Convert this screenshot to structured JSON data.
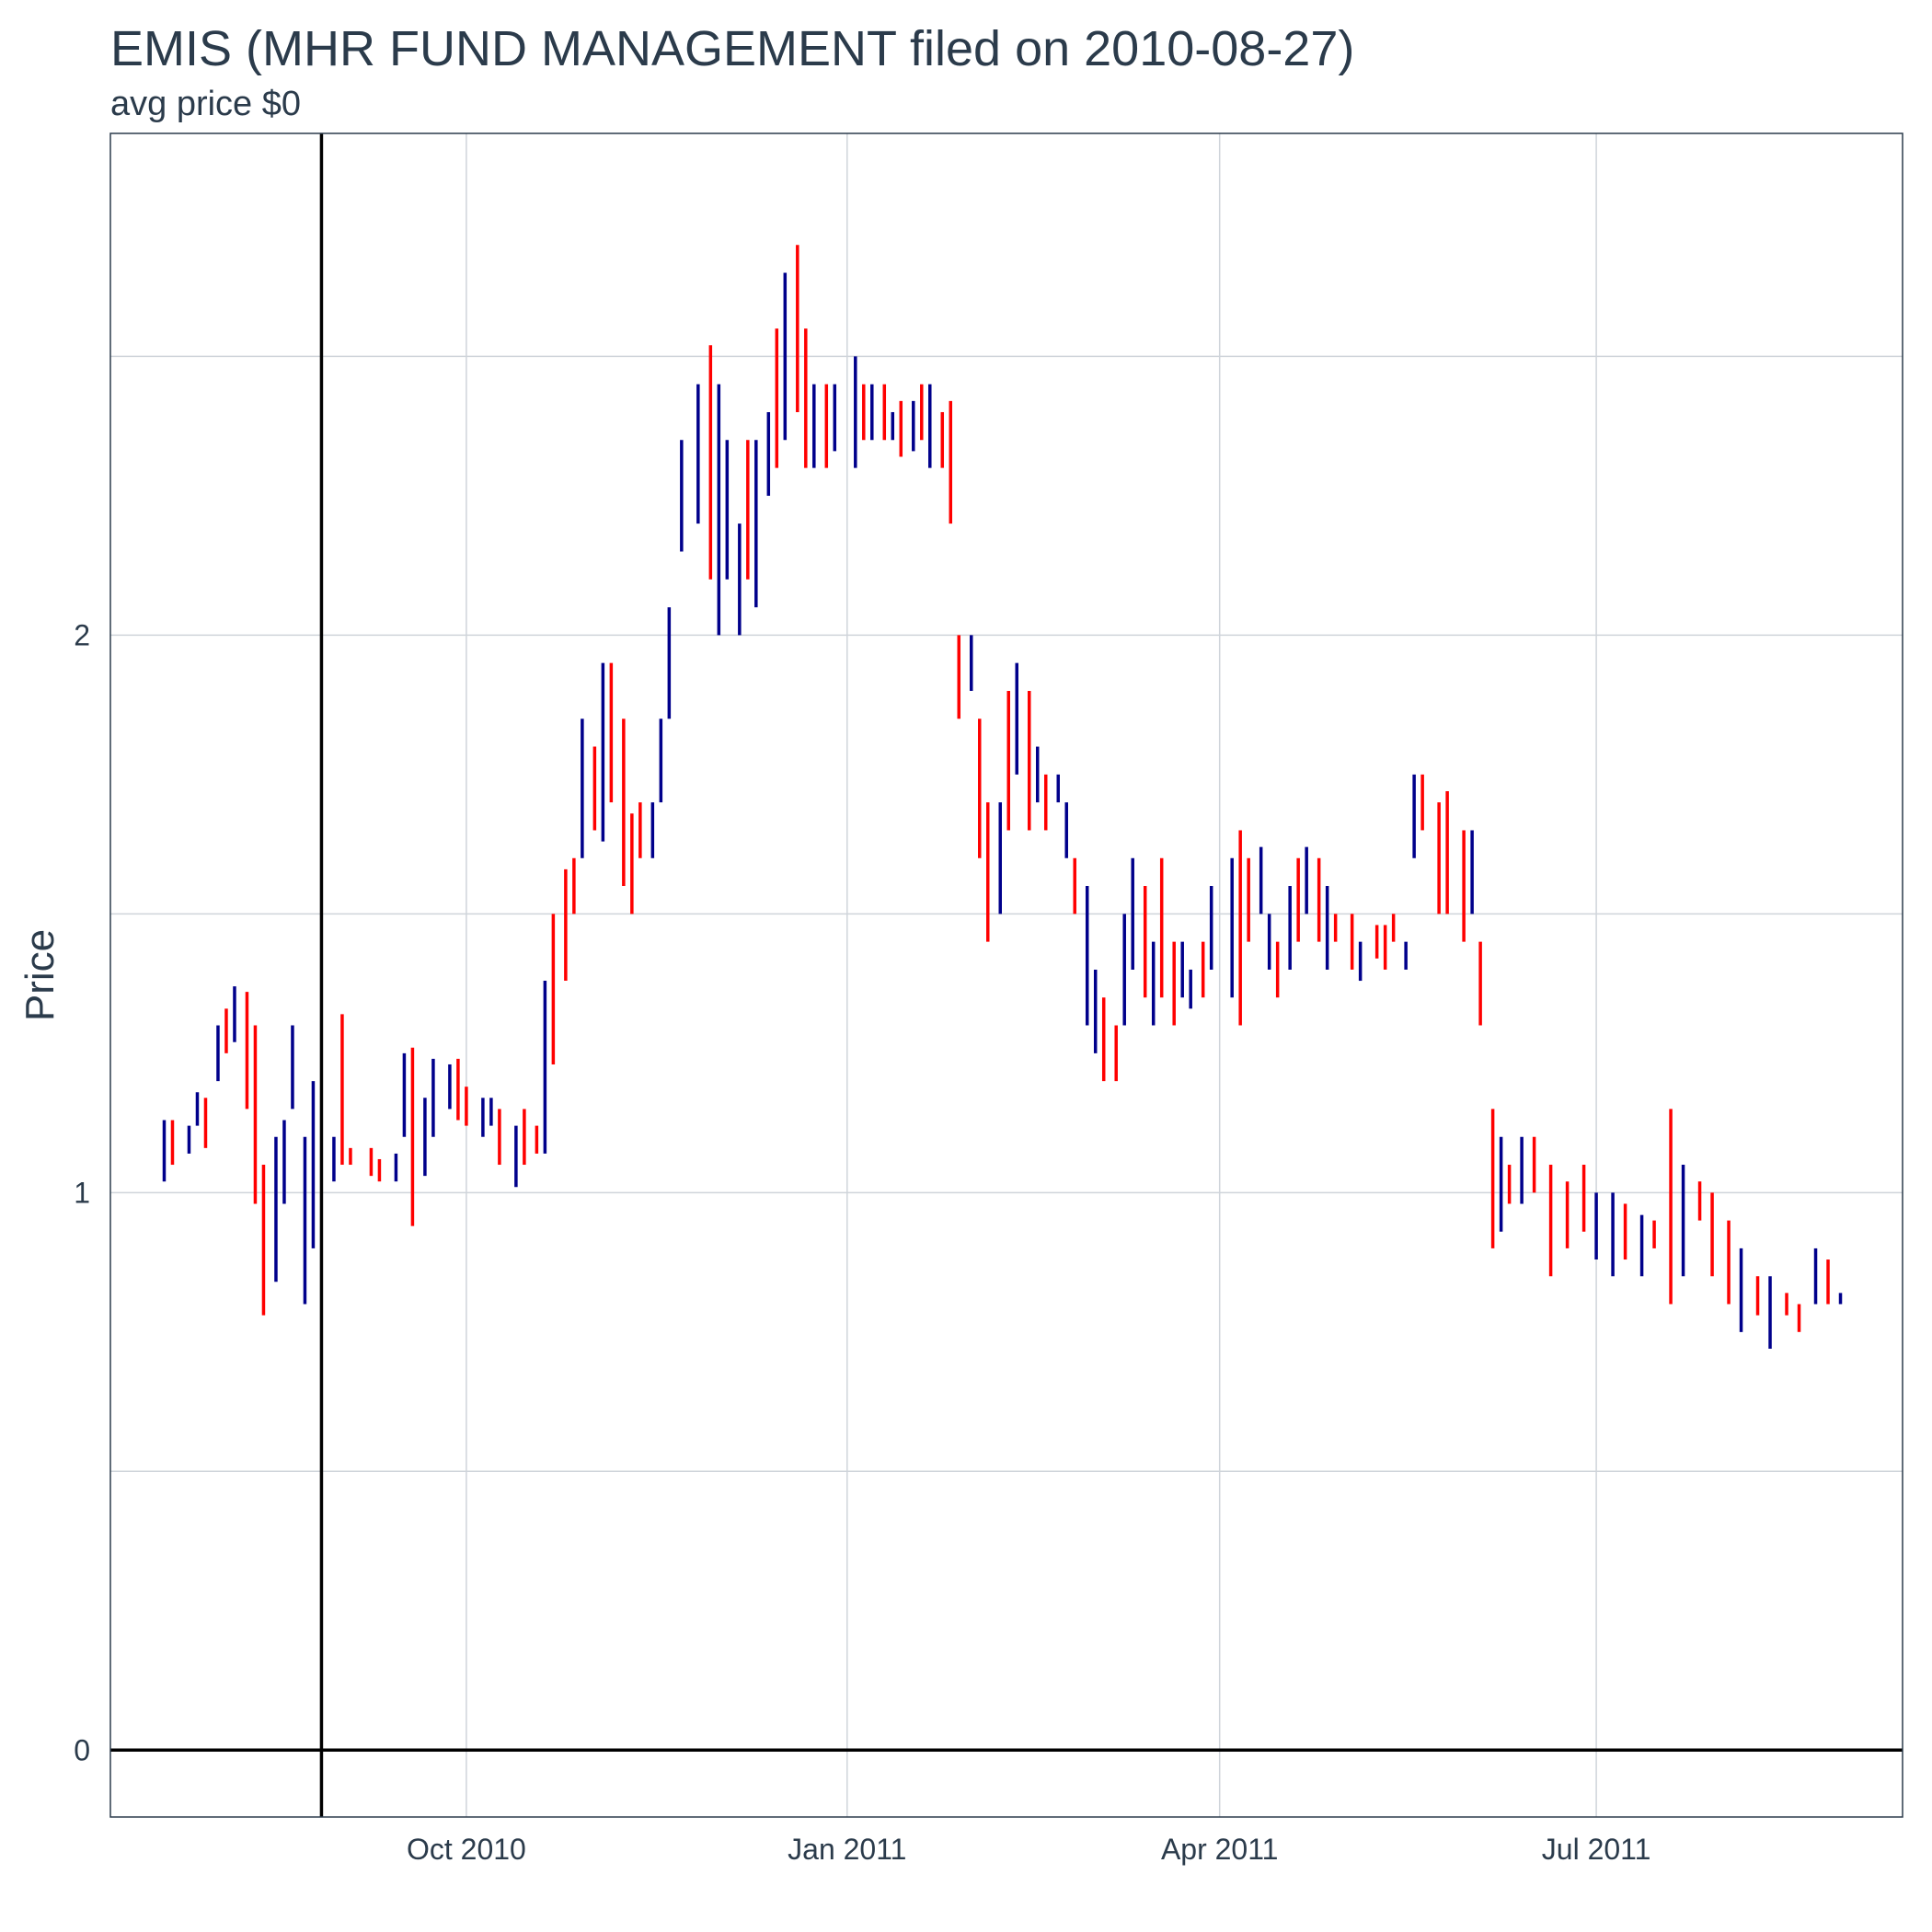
{
  "chart_data": {
    "type": "bar",
    "subtype": "ohlc",
    "title": "EMIS (MHR FUND MANAGEMENT filed on 2010-08-27)",
    "subtitle": "avg price $0",
    "xlabel": "",
    "ylabel": "Price",
    "xlim": [
      "2010-07-07",
      "2011-09-13"
    ],
    "ylim": [
      -0.12,
      2.9
    ],
    "x_ticks": [
      {
        "date": "2010-10-01",
        "label": "Oct 2010"
      },
      {
        "date": "2011-01-01",
        "label": "Jan 2011"
      },
      {
        "date": "2011-04-01",
        "label": "Apr 2011"
      },
      {
        "date": "2011-07-01",
        "label": "Jul 2011"
      }
    ],
    "y_ticks": [
      0,
      1,
      2
    ],
    "y_minor_gridlines": [
      0.5,
      1.5,
      2.5
    ],
    "reference_lines": {
      "vertical_date": "2010-08-27",
      "horizontal_value": 0
    },
    "colors": {
      "up": "#00008b",
      "down": "#ff0000",
      "reference": "#000000"
    },
    "grid": true,
    "legend": "none",
    "series": [
      {
        "date": "2010-07-20",
        "low": 1.02,
        "high": 1.13,
        "dir": "up"
      },
      {
        "date": "2010-07-22",
        "low": 1.05,
        "high": 1.13,
        "dir": "down"
      },
      {
        "date": "2010-07-26",
        "low": 1.07,
        "high": 1.12,
        "dir": "up"
      },
      {
        "date": "2010-07-28",
        "low": 1.12,
        "high": 1.18,
        "dir": "up"
      },
      {
        "date": "2010-07-30",
        "low": 1.08,
        "high": 1.17,
        "dir": "down"
      },
      {
        "date": "2010-08-02",
        "low": 1.2,
        "high": 1.3,
        "dir": "up"
      },
      {
        "date": "2010-08-04",
        "low": 1.25,
        "high": 1.33,
        "dir": "down"
      },
      {
        "date": "2010-08-06",
        "low": 1.27,
        "high": 1.37,
        "dir": "up"
      },
      {
        "date": "2010-08-09",
        "low": 1.15,
        "high": 1.36,
        "dir": "down"
      },
      {
        "date": "2010-08-11",
        "low": 0.98,
        "high": 1.3,
        "dir": "down"
      },
      {
        "date": "2010-08-13",
        "low": 0.78,
        "high": 1.05,
        "dir": "down"
      },
      {
        "date": "2010-08-16",
        "low": 0.84,
        "high": 1.1,
        "dir": "up"
      },
      {
        "date": "2010-08-18",
        "low": 0.98,
        "high": 1.13,
        "dir": "up"
      },
      {
        "date": "2010-08-20",
        "low": 1.15,
        "high": 1.3,
        "dir": "up"
      },
      {
        "date": "2010-08-23",
        "low": 0.8,
        "high": 1.1,
        "dir": "up"
      },
      {
        "date": "2010-08-25",
        "low": 0.9,
        "high": 1.2,
        "dir": "up"
      },
      {
        "date": "2010-08-30",
        "low": 1.02,
        "high": 1.1,
        "dir": "up"
      },
      {
        "date": "2010-09-01",
        "low": 1.05,
        "high": 1.32,
        "dir": "down"
      },
      {
        "date": "2010-09-03",
        "low": 1.05,
        "high": 1.08,
        "dir": "down"
      },
      {
        "date": "2010-09-08",
        "low": 1.03,
        "high": 1.08,
        "dir": "down"
      },
      {
        "date": "2010-09-10",
        "low": 1.02,
        "high": 1.06,
        "dir": "down"
      },
      {
        "date": "2010-09-14",
        "low": 1.02,
        "high": 1.07,
        "dir": "up"
      },
      {
        "date": "2010-09-16",
        "low": 1.1,
        "high": 1.25,
        "dir": "up"
      },
      {
        "date": "2010-09-18",
        "low": 0.94,
        "high": 1.26,
        "dir": "down"
      },
      {
        "date": "2010-09-21",
        "low": 1.03,
        "high": 1.17,
        "dir": "up"
      },
      {
        "date": "2010-09-23",
        "low": 1.1,
        "high": 1.24,
        "dir": "up"
      },
      {
        "date": "2010-09-27",
        "low": 1.15,
        "high": 1.23,
        "dir": "up"
      },
      {
        "date": "2010-09-29",
        "low": 1.13,
        "high": 1.24,
        "dir": "down"
      },
      {
        "date": "2010-10-01",
        "low": 1.12,
        "high": 1.19,
        "dir": "down"
      },
      {
        "date": "2010-10-05",
        "low": 1.1,
        "high": 1.17,
        "dir": "up"
      },
      {
        "date": "2010-10-07",
        "low": 1.12,
        "high": 1.17,
        "dir": "up"
      },
      {
        "date": "2010-10-09",
        "low": 1.05,
        "high": 1.15,
        "dir": "down"
      },
      {
        "date": "2010-10-13",
        "low": 1.01,
        "high": 1.12,
        "dir": "up"
      },
      {
        "date": "2010-10-15",
        "low": 1.05,
        "high": 1.15,
        "dir": "down"
      },
      {
        "date": "2010-10-18",
        "low": 1.07,
        "high": 1.12,
        "dir": "down"
      },
      {
        "date": "2010-10-20",
        "low": 1.07,
        "high": 1.38,
        "dir": "up"
      },
      {
        "date": "2010-10-22",
        "low": 1.23,
        "high": 1.5,
        "dir": "down"
      },
      {
        "date": "2010-10-25",
        "low": 1.38,
        "high": 1.58,
        "dir": "down"
      },
      {
        "date": "2010-10-27",
        "low": 1.5,
        "high": 1.6,
        "dir": "down"
      },
      {
        "date": "2010-10-29",
        "low": 1.6,
        "high": 1.85,
        "dir": "up"
      },
      {
        "date": "2010-11-01",
        "low": 1.65,
        "high": 1.8,
        "dir": "down"
      },
      {
        "date": "2010-11-03",
        "low": 1.63,
        "high": 1.95,
        "dir": "up"
      },
      {
        "date": "2010-11-05",
        "low": 1.7,
        "high": 1.95,
        "dir": "down"
      },
      {
        "date": "2010-11-08",
        "low": 1.55,
        "high": 1.85,
        "dir": "down"
      },
      {
        "date": "2010-11-10",
        "low": 1.5,
        "high": 1.68,
        "dir": "down"
      },
      {
        "date": "2010-11-12",
        "low": 1.6,
        "high": 1.7,
        "dir": "down"
      },
      {
        "date": "2010-11-15",
        "low": 1.6,
        "high": 1.7,
        "dir": "up"
      },
      {
        "date": "2010-11-17",
        "low": 1.7,
        "high": 1.85,
        "dir": "up"
      },
      {
        "date": "2010-11-19",
        "low": 1.85,
        "high": 2.05,
        "dir": "up"
      },
      {
        "date": "2010-11-22",
        "low": 2.15,
        "high": 2.35,
        "dir": "up"
      },
      {
        "date": "2010-11-26",
        "low": 2.2,
        "high": 2.45,
        "dir": "up"
      },
      {
        "date": "2010-11-29",
        "low": 2.1,
        "high": 2.52,
        "dir": "down"
      },
      {
        "date": "2010-12-01",
        "low": 2.0,
        "high": 2.45,
        "dir": "up"
      },
      {
        "date": "2010-12-03",
        "low": 2.1,
        "high": 2.35,
        "dir": "up"
      },
      {
        "date": "2010-12-06",
        "low": 2.0,
        "high": 2.2,
        "dir": "up"
      },
      {
        "date": "2010-12-08",
        "low": 2.1,
        "high": 2.35,
        "dir": "down"
      },
      {
        "date": "2010-12-10",
        "low": 2.05,
        "high": 2.35,
        "dir": "up"
      },
      {
        "date": "2010-12-13",
        "low": 2.25,
        "high": 2.4,
        "dir": "up"
      },
      {
        "date": "2010-12-15",
        "low": 2.3,
        "high": 2.55,
        "dir": "down"
      },
      {
        "date": "2010-12-17",
        "low": 2.35,
        "high": 2.65,
        "dir": "up"
      },
      {
        "date": "2010-12-20",
        "low": 2.4,
        "high": 2.7,
        "dir": "down"
      },
      {
        "date": "2010-12-22",
        "low": 2.3,
        "high": 2.55,
        "dir": "down"
      },
      {
        "date": "2010-12-24",
        "low": 2.3,
        "high": 2.45,
        "dir": "up"
      },
      {
        "date": "2010-12-27",
        "low": 2.3,
        "high": 2.45,
        "dir": "down"
      },
      {
        "date": "2010-12-29",
        "low": 2.33,
        "high": 2.45,
        "dir": "up"
      },
      {
        "date": "2011-01-03",
        "low": 2.3,
        "high": 2.5,
        "dir": "up"
      },
      {
        "date": "2011-01-05",
        "low": 2.35,
        "high": 2.45,
        "dir": "down"
      },
      {
        "date": "2011-01-07",
        "low": 2.35,
        "high": 2.45,
        "dir": "up"
      },
      {
        "date": "2011-01-10",
        "low": 2.35,
        "high": 2.45,
        "dir": "down"
      },
      {
        "date": "2011-01-12",
        "low": 2.35,
        "high": 2.4,
        "dir": "up"
      },
      {
        "date": "2011-01-14",
        "low": 2.32,
        "high": 2.42,
        "dir": "down"
      },
      {
        "date": "2011-01-17",
        "low": 2.33,
        "high": 2.42,
        "dir": "up"
      },
      {
        "date": "2011-01-19",
        "low": 2.35,
        "high": 2.45,
        "dir": "down"
      },
      {
        "date": "2011-01-21",
        "low": 2.3,
        "high": 2.45,
        "dir": "up"
      },
      {
        "date": "2011-01-24",
        "low": 2.3,
        "high": 2.4,
        "dir": "down"
      },
      {
        "date": "2011-01-26",
        "low": 2.2,
        "high": 2.42,
        "dir": "down"
      },
      {
        "date": "2011-01-28",
        "low": 1.85,
        "high": 2.0,
        "dir": "down"
      },
      {
        "date": "2011-01-31",
        "low": 1.9,
        "high": 2.0,
        "dir": "up"
      },
      {
        "date": "2011-02-02",
        "low": 1.6,
        "high": 1.85,
        "dir": "down"
      },
      {
        "date": "2011-02-04",
        "low": 1.45,
        "high": 1.7,
        "dir": "down"
      },
      {
        "date": "2011-02-07",
        "low": 1.5,
        "high": 1.7,
        "dir": "up"
      },
      {
        "date": "2011-02-09",
        "low": 1.65,
        "high": 1.9,
        "dir": "down"
      },
      {
        "date": "2011-02-11",
        "low": 1.75,
        "high": 1.95,
        "dir": "up"
      },
      {
        "date": "2011-02-14",
        "low": 1.65,
        "high": 1.9,
        "dir": "down"
      },
      {
        "date": "2011-02-16",
        "low": 1.7,
        "high": 1.8,
        "dir": "up"
      },
      {
        "date": "2011-02-18",
        "low": 1.65,
        "high": 1.75,
        "dir": "down"
      },
      {
        "date": "2011-02-21",
        "low": 1.7,
        "high": 1.75,
        "dir": "up"
      },
      {
        "date": "2011-02-23",
        "low": 1.6,
        "high": 1.7,
        "dir": "up"
      },
      {
        "date": "2011-02-25",
        "low": 1.5,
        "high": 1.6,
        "dir": "down"
      },
      {
        "date": "2011-02-28",
        "low": 1.3,
        "high": 1.55,
        "dir": "up"
      },
      {
        "date": "2011-03-02",
        "low": 1.25,
        "high": 1.4,
        "dir": "up"
      },
      {
        "date": "2011-03-04",
        "low": 1.2,
        "high": 1.35,
        "dir": "down"
      },
      {
        "date": "2011-03-07",
        "low": 1.2,
        "high": 1.3,
        "dir": "down"
      },
      {
        "date": "2011-03-09",
        "low": 1.3,
        "high": 1.5,
        "dir": "up"
      },
      {
        "date": "2011-03-11",
        "low": 1.4,
        "high": 1.6,
        "dir": "up"
      },
      {
        "date": "2011-03-14",
        "low": 1.35,
        "high": 1.55,
        "dir": "down"
      },
      {
        "date": "2011-03-16",
        "low": 1.3,
        "high": 1.45,
        "dir": "up"
      },
      {
        "date": "2011-03-18",
        "low": 1.35,
        "high": 1.6,
        "dir": "down"
      },
      {
        "date": "2011-03-21",
        "low": 1.3,
        "high": 1.45,
        "dir": "down"
      },
      {
        "date": "2011-03-23",
        "low": 1.35,
        "high": 1.45,
        "dir": "up"
      },
      {
        "date": "2011-03-25",
        "low": 1.33,
        "high": 1.4,
        "dir": "up"
      },
      {
        "date": "2011-03-28",
        "low": 1.35,
        "high": 1.45,
        "dir": "down"
      },
      {
        "date": "2011-03-30",
        "low": 1.4,
        "high": 1.55,
        "dir": "up"
      },
      {
        "date": "2011-04-04",
        "low": 1.35,
        "high": 1.6,
        "dir": "up"
      },
      {
        "date": "2011-04-06",
        "low": 1.3,
        "high": 1.65,
        "dir": "down"
      },
      {
        "date": "2011-04-08",
        "low": 1.45,
        "high": 1.6,
        "dir": "down"
      },
      {
        "date": "2011-04-11",
        "low": 1.5,
        "high": 1.62,
        "dir": "up"
      },
      {
        "date": "2011-04-13",
        "low": 1.4,
        "high": 1.5,
        "dir": "up"
      },
      {
        "date": "2011-04-15",
        "low": 1.35,
        "high": 1.45,
        "dir": "down"
      },
      {
        "date": "2011-04-18",
        "low": 1.4,
        "high": 1.55,
        "dir": "up"
      },
      {
        "date": "2011-04-20",
        "low": 1.45,
        "high": 1.6,
        "dir": "down"
      },
      {
        "date": "2011-04-22",
        "low": 1.5,
        "high": 1.62,
        "dir": "up"
      },
      {
        "date": "2011-04-25",
        "low": 1.45,
        "high": 1.6,
        "dir": "down"
      },
      {
        "date": "2011-04-27",
        "low": 1.4,
        "high": 1.55,
        "dir": "up"
      },
      {
        "date": "2011-04-29",
        "low": 1.45,
        "high": 1.5,
        "dir": "down"
      },
      {
        "date": "2011-05-03",
        "low": 1.4,
        "high": 1.5,
        "dir": "down"
      },
      {
        "date": "2011-05-05",
        "low": 1.38,
        "high": 1.45,
        "dir": "up"
      },
      {
        "date": "2011-05-09",
        "low": 1.42,
        "high": 1.48,
        "dir": "down"
      },
      {
        "date": "2011-05-11",
        "low": 1.4,
        "high": 1.48,
        "dir": "down"
      },
      {
        "date": "2011-05-13",
        "low": 1.45,
        "high": 1.5,
        "dir": "down"
      },
      {
        "date": "2011-05-16",
        "low": 1.4,
        "high": 1.45,
        "dir": "up"
      },
      {
        "date": "2011-05-18",
        "low": 1.6,
        "high": 1.75,
        "dir": "up"
      },
      {
        "date": "2011-05-20",
        "low": 1.65,
        "high": 1.75,
        "dir": "down"
      },
      {
        "date": "2011-05-24",
        "low": 1.5,
        "high": 1.7,
        "dir": "down"
      },
      {
        "date": "2011-05-26",
        "low": 1.5,
        "high": 1.72,
        "dir": "down"
      },
      {
        "date": "2011-05-30",
        "low": 1.45,
        "high": 1.65,
        "dir": "down"
      },
      {
        "date": "2011-06-01",
        "low": 1.5,
        "high": 1.65,
        "dir": "up"
      },
      {
        "date": "2011-06-03",
        "low": 1.3,
        "high": 1.45,
        "dir": "down"
      },
      {
        "date": "2011-06-06",
        "low": 0.9,
        "high": 1.15,
        "dir": "down"
      },
      {
        "date": "2011-06-08",
        "low": 0.93,
        "high": 1.1,
        "dir": "up"
      },
      {
        "date": "2011-06-10",
        "low": 0.98,
        "high": 1.05,
        "dir": "down"
      },
      {
        "date": "2011-06-13",
        "low": 0.98,
        "high": 1.1,
        "dir": "up"
      },
      {
        "date": "2011-06-16",
        "low": 1.0,
        "high": 1.1,
        "dir": "down"
      },
      {
        "date": "2011-06-20",
        "low": 0.85,
        "high": 1.05,
        "dir": "down"
      },
      {
        "date": "2011-06-24",
        "low": 0.9,
        "high": 1.02,
        "dir": "down"
      },
      {
        "date": "2011-06-28",
        "low": 0.93,
        "high": 1.05,
        "dir": "down"
      },
      {
        "date": "2011-07-01",
        "low": 0.88,
        "high": 1.0,
        "dir": "up"
      },
      {
        "date": "2011-07-05",
        "low": 0.85,
        "high": 1.0,
        "dir": "up"
      },
      {
        "date": "2011-07-08",
        "low": 0.88,
        "high": 0.98,
        "dir": "down"
      },
      {
        "date": "2011-07-12",
        "low": 0.85,
        "high": 0.96,
        "dir": "up"
      },
      {
        "date": "2011-07-15",
        "low": 0.9,
        "high": 0.95,
        "dir": "down"
      },
      {
        "date": "2011-07-19",
        "low": 0.8,
        "high": 1.15,
        "dir": "down"
      },
      {
        "date": "2011-07-22",
        "low": 0.85,
        "high": 1.05,
        "dir": "up"
      },
      {
        "date": "2011-07-26",
        "low": 0.95,
        "high": 1.02,
        "dir": "down"
      },
      {
        "date": "2011-07-29",
        "low": 0.85,
        "high": 1.0,
        "dir": "down"
      },
      {
        "date": "2011-08-02",
        "low": 0.8,
        "high": 0.95,
        "dir": "down"
      },
      {
        "date": "2011-08-05",
        "low": 0.75,
        "high": 0.9,
        "dir": "up"
      },
      {
        "date": "2011-08-09",
        "low": 0.78,
        "high": 0.85,
        "dir": "down"
      },
      {
        "date": "2011-08-12",
        "low": 0.72,
        "high": 0.85,
        "dir": "up"
      },
      {
        "date": "2011-08-16",
        "low": 0.78,
        "high": 0.82,
        "dir": "down"
      },
      {
        "date": "2011-08-19",
        "low": 0.75,
        "high": 0.8,
        "dir": "down"
      },
      {
        "date": "2011-08-23",
        "low": 0.8,
        "high": 0.9,
        "dir": "up"
      },
      {
        "date": "2011-08-26",
        "low": 0.8,
        "high": 0.88,
        "dir": "down"
      },
      {
        "date": "2011-08-29",
        "low": 0.8,
        "high": 0.82,
        "dir": "up"
      }
    ]
  }
}
